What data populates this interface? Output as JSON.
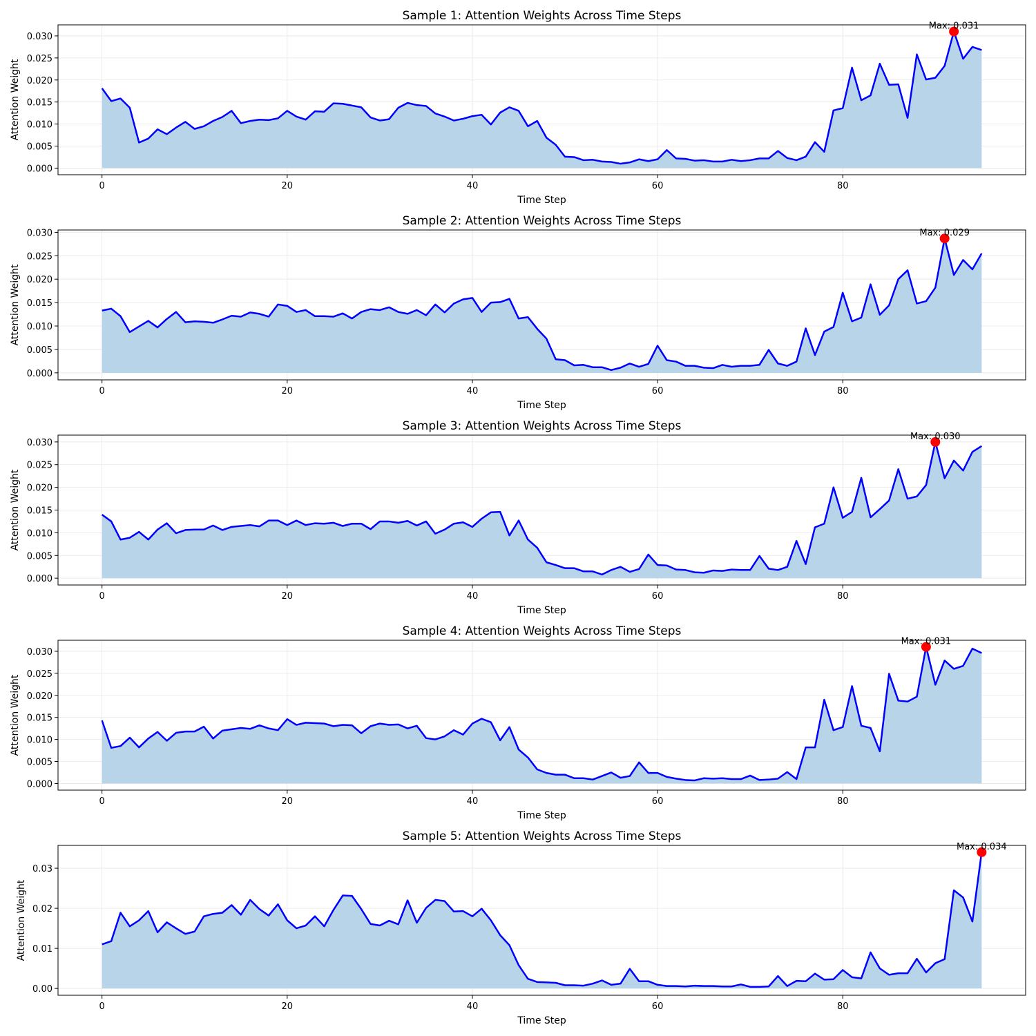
{
  "chart_data": [
    {
      "type": "area",
      "title": "Sample 1: Attention Weights Across Time Steps",
      "xlabel": "Time Step",
      "ylabel": "Attention Weight",
      "xlim": [
        -4.75,
        99.75
      ],
      "ylim": [
        -0.0015,
        0.0325
      ],
      "x_ticks": [
        0,
        20,
        40,
        60,
        80
      ],
      "y_ticks": [
        0,
        0.005,
        0.01,
        0.015,
        0.02,
        0.025,
        0.03
      ],
      "y_tick_labels": [
        "0.000",
        "0.005",
        "0.010",
        "0.015",
        "0.020",
        "0.025",
        "0.030"
      ],
      "grid": true,
      "line_color": "#0000ff",
      "fill_color": "#b8d4e8",
      "max_marker_color": "#ff0000",
      "max_point": {
        "x": 92,
        "y": 0.031
      },
      "max_label": "Max: 0.031",
      "x": [
        0,
        1,
        2,
        3,
        4,
        5,
        6,
        7,
        8,
        9,
        10,
        11,
        12,
        13,
        14,
        15,
        16,
        17,
        18,
        19,
        20,
        21,
        22,
        23,
        24,
        25,
        26,
        27,
        28,
        29,
        30,
        31,
        32,
        33,
        34,
        35,
        36,
        37,
        38,
        39,
        40,
        41,
        42,
        43,
        44,
        45,
        46,
        47,
        48,
        49,
        50,
        51,
        52,
        53,
        54,
        55,
        56,
        57,
        58,
        59,
        60,
        61,
        62,
        63,
        64,
        65,
        66,
        67,
        68,
        69,
        70,
        71,
        72,
        73,
        74,
        75,
        76,
        77,
        78,
        79,
        80,
        81,
        82,
        83,
        84,
        85,
        86,
        87,
        88,
        89,
        90,
        91,
        92,
        93,
        94,
        95
      ],
      "values": [
        0.0181,
        0.0152,
        0.0158,
        0.0137,
        0.0058,
        0.0067,
        0.0088,
        0.0077,
        0.0092,
        0.0105,
        0.0089,
        0.0095,
        0.0107,
        0.0116,
        0.013,
        0.0102,
        0.0107,
        0.011,
        0.0109,
        0.0113,
        0.013,
        0.0117,
        0.011,
        0.0129,
        0.0128,
        0.0147,
        0.0146,
        0.0142,
        0.0138,
        0.0115,
        0.0108,
        0.0111,
        0.0137,
        0.0148,
        0.0143,
        0.0141,
        0.0124,
        0.0117,
        0.0108,
        0.0112,
        0.0118,
        0.0121,
        0.0099,
        0.0126,
        0.0138,
        0.013,
        0.0095,
        0.0107,
        0.0069,
        0.0053,
        0.0026,
        0.0025,
        0.0018,
        0.0019,
        0.0015,
        0.0014,
        0.001,
        0.0013,
        0.002,
        0.0016,
        0.002,
        0.0041,
        0.0022,
        0.0021,
        0.0017,
        0.0018,
        0.0015,
        0.0015,
        0.0019,
        0.0016,
        0.0018,
        0.0022,
        0.0022,
        0.0039,
        0.0023,
        0.0018,
        0.0026,
        0.0059,
        0.0037,
        0.0131,
        0.0136,
        0.0228,
        0.0154,
        0.0165,
        0.0237,
        0.0189,
        0.019,
        0.0114,
        0.0258,
        0.0201,
        0.0205,
        0.0232,
        0.031,
        0.0248,
        0.0275,
        0.0268
      ]
    },
    {
      "type": "area",
      "title": "Sample 2: Attention Weights Across Time Steps",
      "xlabel": "Time Step",
      "ylabel": "Attention Weight",
      "xlim": [
        -4.75,
        99.75
      ],
      "ylim": [
        -0.0015,
        0.0305
      ],
      "x_ticks": [
        0,
        20,
        40,
        60,
        80
      ],
      "y_ticks": [
        0,
        0.005,
        0.01,
        0.015,
        0.02,
        0.025,
        0.03
      ],
      "y_tick_labels": [
        "0.000",
        "0.005",
        "0.010",
        "0.015",
        "0.020",
        "0.025",
        "0.030"
      ],
      "grid": true,
      "line_color": "#0000ff",
      "fill_color": "#b8d4e8",
      "max_marker_color": "#ff0000",
      "max_point": {
        "x": 91,
        "y": 0.0287
      },
      "max_label": "Max: 0.029",
      "x": [
        0,
        1,
        2,
        3,
        4,
        5,
        6,
        7,
        8,
        9,
        10,
        11,
        12,
        13,
        14,
        15,
        16,
        17,
        18,
        19,
        20,
        21,
        22,
        23,
        24,
        25,
        26,
        27,
        28,
        29,
        30,
        31,
        32,
        33,
        34,
        35,
        36,
        37,
        38,
        39,
        40,
        41,
        42,
        43,
        44,
        45,
        46,
        47,
        48,
        49,
        50,
        51,
        52,
        53,
        54,
        55,
        56,
        57,
        58,
        59,
        60,
        61,
        62,
        63,
        64,
        65,
        66,
        67,
        68,
        69,
        70,
        71,
        72,
        73,
        74,
        75,
        76,
        77,
        78,
        79,
        80,
        81,
        82,
        83,
        84,
        85,
        86,
        87,
        88,
        89,
        90,
        91,
        92,
        93,
        94,
        95
      ],
      "values": [
        0.0133,
        0.0137,
        0.0121,
        0.0087,
        0.0099,
        0.0111,
        0.0097,
        0.0115,
        0.013,
        0.0108,
        0.011,
        0.0109,
        0.0107,
        0.0114,
        0.0122,
        0.012,
        0.0129,
        0.0126,
        0.012,
        0.0146,
        0.0143,
        0.013,
        0.0134,
        0.0121,
        0.0121,
        0.012,
        0.0127,
        0.0116,
        0.013,
        0.0136,
        0.0134,
        0.014,
        0.013,
        0.0126,
        0.0134,
        0.0123,
        0.0146,
        0.0129,
        0.0148,
        0.0157,
        0.016,
        0.013,
        0.015,
        0.0151,
        0.0158,
        0.0116,
        0.0119,
        0.0094,
        0.0073,
        0.0029,
        0.0027,
        0.0016,
        0.0017,
        0.0012,
        0.0012,
        0.0006,
        0.0011,
        0.002,
        0.0013,
        0.0019,
        0.0058,
        0.0027,
        0.0024,
        0.0015,
        0.0015,
        0.0011,
        0.001,
        0.0017,
        0.0013,
        0.0015,
        0.0015,
        0.0017,
        0.0049,
        0.002,
        0.0015,
        0.0024,
        0.0095,
        0.0038,
        0.0088,
        0.0098,
        0.0171,
        0.011,
        0.0118,
        0.0189,
        0.0124,
        0.0144,
        0.02,
        0.0219,
        0.0148,
        0.0153,
        0.0182,
        0.0287,
        0.0209,
        0.0241,
        0.0221,
        0.0255
      ]
    },
    {
      "type": "area",
      "title": "Sample 3: Attention Weights Across Time Steps",
      "xlabel": "Time Step",
      "ylabel": "Attention Weight",
      "xlim": [
        -4.75,
        99.75
      ],
      "ylim": [
        -0.0015,
        0.0315
      ],
      "x_ticks": [
        0,
        20,
        40,
        60,
        80
      ],
      "y_ticks": [
        0,
        0.005,
        0.01,
        0.015,
        0.02,
        0.025,
        0.03
      ],
      "y_tick_labels": [
        "0.000",
        "0.005",
        "0.010",
        "0.015",
        "0.020",
        "0.025",
        "0.030"
      ],
      "grid": true,
      "line_color": "#0000ff",
      "fill_color": "#b8d4e8",
      "max_marker_color": "#ff0000",
      "max_point": {
        "x": 90,
        "y": 0.03
      },
      "max_label": "Max: 0.030",
      "x": [
        0,
        1,
        2,
        3,
        4,
        5,
        6,
        7,
        8,
        9,
        10,
        11,
        12,
        13,
        14,
        15,
        16,
        17,
        18,
        19,
        20,
        21,
        22,
        23,
        24,
        25,
        26,
        27,
        28,
        29,
        30,
        31,
        32,
        33,
        34,
        35,
        36,
        37,
        38,
        39,
        40,
        41,
        42,
        43,
        44,
        45,
        46,
        47,
        48,
        49,
        50,
        51,
        52,
        53,
        54,
        55,
        56,
        57,
        58,
        59,
        60,
        61,
        62,
        63,
        64,
        65,
        66,
        67,
        68,
        69,
        70,
        71,
        72,
        73,
        74,
        75,
        76,
        77,
        78,
        79,
        80,
        81,
        82,
        83,
        84,
        85,
        86,
        87,
        88,
        89,
        90,
        91,
        92,
        93,
        94,
        95
      ],
      "values": [
        0.014,
        0.0125,
        0.0085,
        0.0089,
        0.0102,
        0.0085,
        0.0107,
        0.0121,
        0.0099,
        0.0106,
        0.0107,
        0.0107,
        0.0116,
        0.0106,
        0.0113,
        0.0115,
        0.0117,
        0.0114,
        0.0127,
        0.0127,
        0.0117,
        0.0127,
        0.0117,
        0.0121,
        0.012,
        0.0122,
        0.0115,
        0.012,
        0.012,
        0.0108,
        0.0125,
        0.0125,
        0.0122,
        0.0126,
        0.0116,
        0.0125,
        0.0098,
        0.0107,
        0.012,
        0.0123,
        0.0113,
        0.0131,
        0.0145,
        0.0146,
        0.0094,
        0.0127,
        0.0085,
        0.0067,
        0.0035,
        0.0029,
        0.0022,
        0.0022,
        0.0015,
        0.0015,
        0.0008,
        0.0018,
        0.0025,
        0.0014,
        0.002,
        0.0052,
        0.0029,
        0.0028,
        0.0019,
        0.0018,
        0.0013,
        0.0012,
        0.0017,
        0.0016,
        0.0019,
        0.0018,
        0.0018,
        0.0049,
        0.0021,
        0.0018,
        0.0025,
        0.0082,
        0.0031,
        0.0112,
        0.012,
        0.02,
        0.0133,
        0.0146,
        0.0221,
        0.0134,
        0.0152,
        0.0171,
        0.024,
        0.0175,
        0.018,
        0.0205,
        0.03,
        0.022,
        0.0259,
        0.0237,
        0.0278,
        0.0291
      ]
    },
    {
      "type": "area",
      "title": "Sample 4: Attention Weights Across Time Steps",
      "xlabel": "Time Step",
      "ylabel": "Attention Weight",
      "xlim": [
        -4.75,
        99.75
      ],
      "ylim": [
        -0.0015,
        0.0325
      ],
      "x_ticks": [
        0,
        20,
        40,
        60,
        80
      ],
      "y_ticks": [
        0,
        0.005,
        0.01,
        0.015,
        0.02,
        0.025,
        0.03
      ],
      "y_tick_labels": [
        "0.000",
        "0.005",
        "0.010",
        "0.015",
        "0.020",
        "0.025",
        "0.030"
      ],
      "grid": true,
      "line_color": "#0000ff",
      "fill_color": "#b8d4e8",
      "max_marker_color": "#ff0000",
      "max_point": {
        "x": 89,
        "y": 0.031
      },
      "max_label": "Max: 0.031",
      "x": [
        0,
        1,
        2,
        3,
        4,
        5,
        6,
        7,
        8,
        9,
        10,
        11,
        12,
        13,
        14,
        15,
        16,
        17,
        18,
        19,
        20,
        21,
        22,
        23,
        24,
        25,
        26,
        27,
        28,
        29,
        30,
        31,
        32,
        33,
        34,
        35,
        36,
        37,
        38,
        39,
        40,
        41,
        42,
        43,
        44,
        45,
        46,
        47,
        48,
        49,
        50,
        51,
        52,
        53,
        54,
        55,
        56,
        57,
        58,
        59,
        60,
        61,
        62,
        63,
        64,
        65,
        66,
        67,
        68,
        69,
        70,
        71,
        72,
        73,
        74,
        75,
        76,
        77,
        78,
        79,
        80,
        81,
        82,
        83,
        84,
        85,
        86,
        87,
        88,
        89,
        90,
        91,
        92,
        93,
        94,
        95
      ],
      "values": [
        0.0143,
        0.0081,
        0.0085,
        0.0104,
        0.0082,
        0.0102,
        0.0117,
        0.0097,
        0.0115,
        0.0118,
        0.0118,
        0.0129,
        0.0102,
        0.012,
        0.0123,
        0.0126,
        0.0124,
        0.0132,
        0.0125,
        0.0121,
        0.0146,
        0.0133,
        0.0138,
        0.0137,
        0.0136,
        0.013,
        0.0133,
        0.0132,
        0.0114,
        0.013,
        0.0136,
        0.0133,
        0.0134,
        0.0125,
        0.0131,
        0.0103,
        0.01,
        0.0107,
        0.0121,
        0.0111,
        0.0136,
        0.0147,
        0.0139,
        0.0098,
        0.0128,
        0.0077,
        0.0059,
        0.0032,
        0.0024,
        0.002,
        0.002,
        0.0012,
        0.0012,
        0.0009,
        0.0017,
        0.0025,
        0.0013,
        0.0017,
        0.0048,
        0.0024,
        0.0024,
        0.0015,
        0.0011,
        0.0008,
        0.0007,
        0.0012,
        0.0011,
        0.0012,
        0.001,
        0.001,
        0.0018,
        0.0008,
        0.0009,
        0.0011,
        0.0026,
        0.001,
        0.0082,
        0.0082,
        0.019,
        0.0121,
        0.0128,
        0.0221,
        0.0131,
        0.0126,
        0.0073,
        0.0249,
        0.0188,
        0.0186,
        0.0197,
        0.031,
        0.0224,
        0.0279,
        0.026,
        0.0267,
        0.0306,
        0.0296
      ]
    },
    {
      "type": "area",
      "title": "Sample 5: Attention Weights Across Time Steps",
      "xlabel": "Time Step",
      "ylabel": "Attention Weight",
      "xlim": [
        -4.75,
        99.75
      ],
      "ylim": [
        -0.0017,
        0.0357
      ],
      "x_ticks": [
        0,
        20,
        40,
        60,
        80
      ],
      "y_ticks": [
        0,
        0.01,
        0.02,
        0.03
      ],
      "y_tick_labels": [
        "0.00",
        "0.01",
        "0.02",
        "0.03"
      ],
      "grid": true,
      "line_color": "#0000ff",
      "fill_color": "#b8d4e8",
      "max_marker_color": "#ff0000",
      "max_point": {
        "x": 95,
        "y": 0.034
      },
      "max_label": "Max: 0.034",
      "x": [
        0,
        1,
        2,
        3,
        4,
        5,
        6,
        7,
        8,
        9,
        10,
        11,
        12,
        13,
        14,
        15,
        16,
        17,
        18,
        19,
        20,
        21,
        22,
        23,
        24,
        25,
        26,
        27,
        28,
        29,
        30,
        31,
        32,
        33,
        34,
        35,
        36,
        37,
        38,
        39,
        40,
        41,
        42,
        43,
        44,
        45,
        46,
        47,
        48,
        49,
        50,
        51,
        52,
        53,
        54,
        55,
        56,
        57,
        58,
        59,
        60,
        61,
        62,
        63,
        64,
        65,
        66,
        67,
        68,
        69,
        70,
        71,
        72,
        73,
        74,
        75,
        76,
        77,
        78,
        79,
        80,
        81,
        82,
        83,
        84,
        85,
        86,
        87,
        88,
        89,
        90,
        91,
        92,
        93,
        94,
        95
      ],
      "values": [
        0.011,
        0.0118,
        0.0189,
        0.0155,
        0.017,
        0.0193,
        0.014,
        0.0165,
        0.015,
        0.0136,
        0.0142,
        0.018,
        0.0186,
        0.0189,
        0.0208,
        0.0184,
        0.0221,
        0.0198,
        0.0182,
        0.021,
        0.017,
        0.015,
        0.0157,
        0.018,
        0.0155,
        0.0196,
        0.0232,
        0.0231,
        0.0198,
        0.0161,
        0.0157,
        0.0169,
        0.016,
        0.022,
        0.0164,
        0.0201,
        0.0221,
        0.0218,
        0.0192,
        0.0193,
        0.018,
        0.0199,
        0.017,
        0.0133,
        0.0108,
        0.0058,
        0.0024,
        0.0016,
        0.0015,
        0.0014,
        0.0008,
        0.0008,
        0.0007,
        0.0012,
        0.002,
        0.0009,
        0.0012,
        0.0049,
        0.0018,
        0.0018,
        0.0009,
        0.0006,
        0.0006,
        0.0005,
        0.0007,
        0.0006,
        0.0006,
        0.0005,
        0.0005,
        0.001,
        0.0004,
        0.0004,
        0.0005,
        0.0031,
        0.0006,
        0.0019,
        0.0018,
        0.0037,
        0.0022,
        0.0023,
        0.0046,
        0.0028,
        0.0025,
        0.009,
        0.005,
        0.0034,
        0.0038,
        0.0038,
        0.0074,
        0.004,
        0.0063,
        0.0073,
        0.0245,
        0.0227,
        0.0167,
        0.034
      ]
    }
  ]
}
